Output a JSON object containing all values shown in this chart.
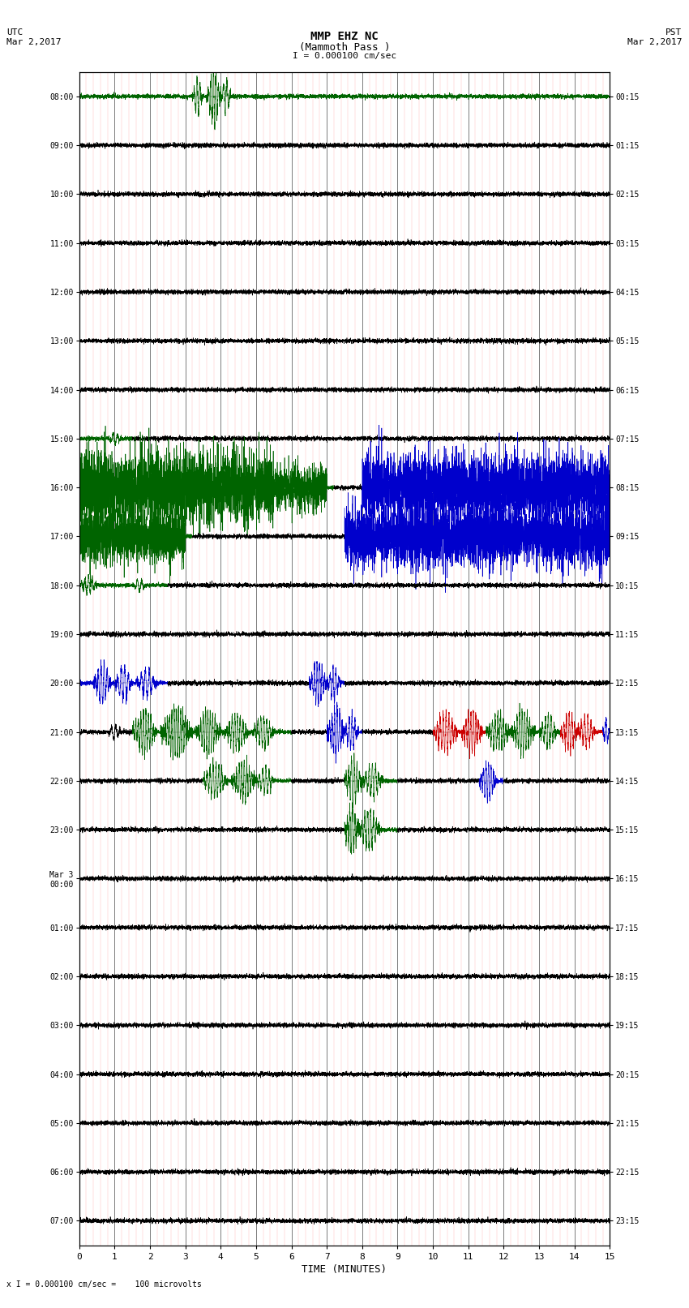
{
  "title_line1": "MMP EHZ NC",
  "title_line2": "(Mammoth Pass )",
  "scale_label": "I = 0.000100 cm/sec",
  "left_header_1": "UTC",
  "left_header_2": "Mar 2,2017",
  "right_header_1": "PST",
  "right_header_2": "Mar 2,2017",
  "bottom_note": "x I = 0.000100 cm/sec =    100 microvolts",
  "xlabel": "TIME (MINUTES)",
  "utc_times": [
    "08:00",
    "09:00",
    "10:00",
    "11:00",
    "12:00",
    "13:00",
    "14:00",
    "15:00",
    "16:00",
    "17:00",
    "18:00",
    "19:00",
    "20:00",
    "21:00",
    "22:00",
    "23:00",
    "Mar 3\n00:00",
    "01:00",
    "02:00",
    "03:00",
    "04:00",
    "05:00",
    "06:00",
    "07:00"
  ],
  "pst_times": [
    "00:15",
    "01:15",
    "02:15",
    "03:15",
    "04:15",
    "05:15",
    "06:15",
    "07:15",
    "08:15",
    "09:15",
    "10:15",
    "11:15",
    "12:15",
    "13:15",
    "14:15",
    "15:15",
    "16:15",
    "17:15",
    "18:15",
    "19:15",
    "20:15",
    "21:15",
    "22:15",
    "23:15"
  ],
  "n_rows": 24,
  "n_minutes": 15,
  "bg_color": "#ffffff",
  "green": "#006400",
  "blue": "#0000cc",
  "red": "#cc0000",
  "black": "#000000",
  "red_grid": "#ff4444",
  "fig_width": 8.5,
  "fig_height": 16.13
}
